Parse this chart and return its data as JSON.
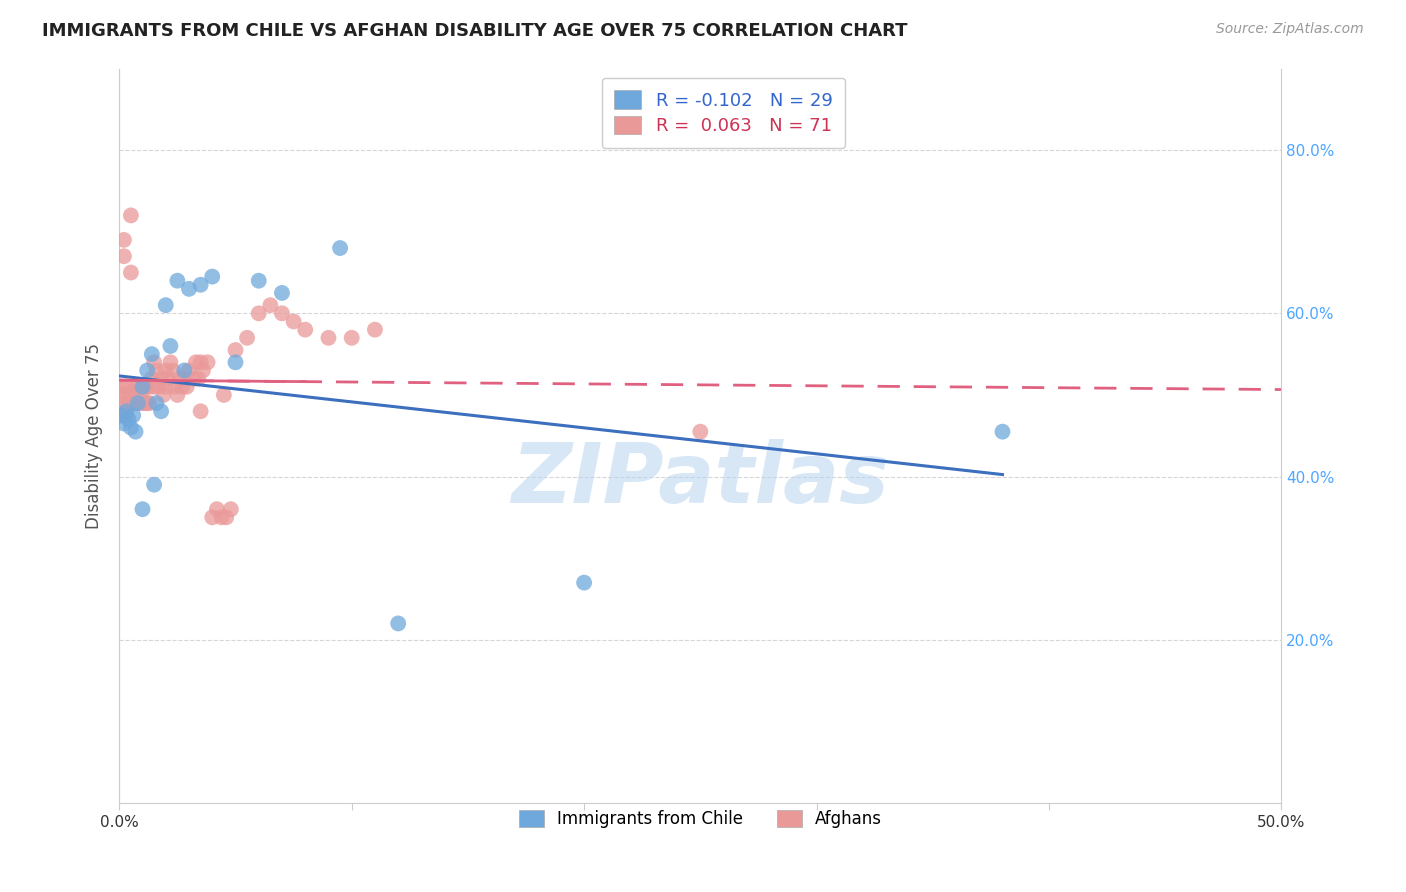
{
  "title": "IMMIGRANTS FROM CHILE VS AFGHAN DISABILITY AGE OVER 75 CORRELATION CHART",
  "source": "Source: ZipAtlas.com",
  "ylabel": "Disability Age Over 75",
  "xlim": [
    0.0,
    0.5
  ],
  "ylim": [
    0.0,
    0.9
  ],
  "yticks": [
    0.2,
    0.4,
    0.6,
    0.8
  ],
  "ytick_labels_right": [
    "20.0%",
    "40.0%",
    "60.0%",
    "80.0%"
  ],
  "xtick_vals": [
    0.0,
    0.1,
    0.2,
    0.3,
    0.4,
    0.5
  ],
  "chile_color": "#6fa8dc",
  "afghan_color": "#ea9999",
  "chile_line_color": "#3c6fbe",
  "afghan_line_color": "#e06080",
  "chile_R": -0.102,
  "chile_N": 29,
  "afghan_R": 0.063,
  "afghan_N": 71,
  "legend_labels": [
    "Immigrants from Chile",
    "Afghans"
  ],
  "watermark": "ZIPatlas",
  "chile_x": [
    0.001,
    0.002,
    0.003,
    0.004,
    0.005,
    0.006,
    0.007,
    0.008,
    0.01,
    0.012,
    0.014,
    0.016,
    0.018,
    0.02,
    0.022,
    0.025,
    0.028,
    0.03,
    0.035,
    0.04,
    0.05,
    0.06,
    0.07,
    0.01,
    0.015,
    0.095,
    0.12,
    0.2,
    0.38
  ],
  "chile_y": [
    0.475,
    0.465,
    0.48,
    0.47,
    0.46,
    0.475,
    0.455,
    0.49,
    0.51,
    0.53,
    0.55,
    0.49,
    0.48,
    0.61,
    0.56,
    0.64,
    0.53,
    0.63,
    0.635,
    0.645,
    0.54,
    0.64,
    0.625,
    0.36,
    0.39,
    0.68,
    0.22,
    0.27,
    0.455
  ],
  "afghan_x": [
    0.001,
    0.001,
    0.001,
    0.002,
    0.002,
    0.002,
    0.003,
    0.003,
    0.003,
    0.004,
    0.004,
    0.005,
    0.005,
    0.006,
    0.006,
    0.007,
    0.007,
    0.008,
    0.008,
    0.009,
    0.01,
    0.01,
    0.011,
    0.011,
    0.012,
    0.012,
    0.013,
    0.013,
    0.014,
    0.015,
    0.015,
    0.016,
    0.017,
    0.018,
    0.019,
    0.02,
    0.02,
    0.021,
    0.022,
    0.023,
    0.024,
    0.025,
    0.026,
    0.027,
    0.028,
    0.029,
    0.03,
    0.032,
    0.033,
    0.034,
    0.035,
    0.036,
    0.038,
    0.04,
    0.042,
    0.044,
    0.046,
    0.048,
    0.05,
    0.055,
    0.06,
    0.065,
    0.07,
    0.075,
    0.08,
    0.09,
    0.1,
    0.11,
    0.035,
    0.045,
    0.25
  ],
  "afghan_y": [
    0.51,
    0.49,
    0.475,
    0.69,
    0.67,
    0.5,
    0.51,
    0.49,
    0.475,
    0.5,
    0.49,
    0.72,
    0.65,
    0.49,
    0.5,
    0.51,
    0.49,
    0.51,
    0.49,
    0.5,
    0.51,
    0.49,
    0.51,
    0.49,
    0.51,
    0.49,
    0.51,
    0.49,
    0.52,
    0.54,
    0.51,
    0.53,
    0.51,
    0.52,
    0.5,
    0.53,
    0.51,
    0.52,
    0.54,
    0.53,
    0.51,
    0.5,
    0.52,
    0.51,
    0.52,
    0.51,
    0.53,
    0.52,
    0.54,
    0.52,
    0.54,
    0.53,
    0.54,
    0.35,
    0.36,
    0.35,
    0.35,
    0.36,
    0.555,
    0.57,
    0.6,
    0.61,
    0.6,
    0.59,
    0.58,
    0.57,
    0.57,
    0.58,
    0.48,
    0.5,
    0.455
  ],
  "background_color": "#ffffff",
  "grid_color": "#cccccc",
  "title_color": "#222222",
  "axis_label_color": "#555555",
  "right_tick_color": "#4da6ff"
}
